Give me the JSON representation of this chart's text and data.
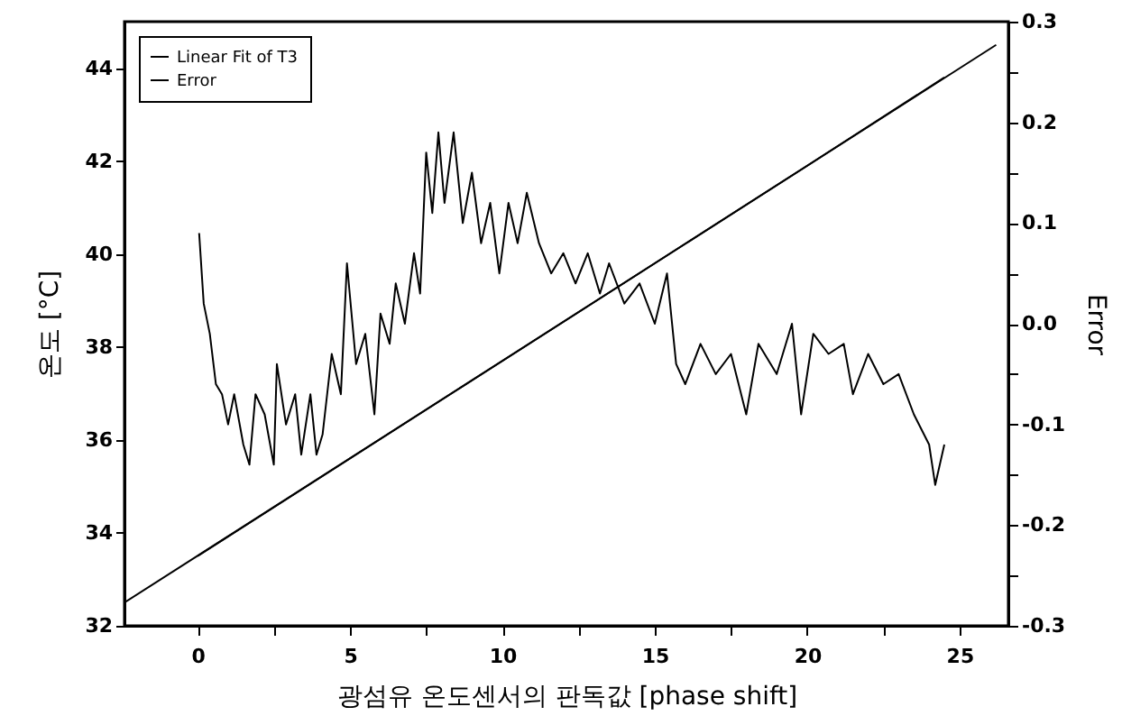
{
  "chart_data": {
    "type": "line",
    "xlabel": "광섬유 온도센서의 판독값 [phase shift]",
    "ylabel": "온도 [°C]",
    "y2label": "Error",
    "xlim": [
      -2.4,
      26.6
    ],
    "xticks": [
      0,
      {
        "value": 2.5,
        "label": null
      },
      5,
      {
        "value": 7.5,
        "label": null
      },
      10,
      {
        "value": 12.5,
        "label": null
      },
      15,
      {
        "value": 17.5,
        "label": null
      },
      20,
      {
        "value": 22.5,
        "label": null
      },
      25
    ],
    "ylim": [
      32,
      45
    ],
    "yticks": [
      32,
      34,
      36,
      38,
      40,
      42,
      44
    ],
    "y2lim": [
      -0.3,
      0.3
    ],
    "y2ticks": [
      {
        "value": -0.3,
        "label": "-0.3"
      },
      {
        "value": -0.25,
        "label": null
      },
      {
        "value": -0.2,
        "label": "-0.2"
      },
      {
        "value": -0.15,
        "label": null
      },
      {
        "value": -0.1,
        "label": "-0.1"
      },
      {
        "value": -0.05,
        "label": null
      },
      {
        "value": 0,
        "label": "0.0"
      },
      {
        "value": 0.05,
        "label": null
      },
      {
        "value": 0.1,
        "label": "0.1"
      },
      {
        "value": 0.15,
        "label": null
      },
      {
        "value": 0.2,
        "label": "0.2"
      },
      {
        "value": 0.25,
        "label": null
      },
      {
        "value": 0.3,
        "label": "0.3"
      }
    ],
    "grid": false,
    "legend": "top left",
    "series": [
      {
        "color": "#000000",
        "x": [
          0,
          5,
          10,
          15,
          20,
          24.5
        ],
        "values": [
          33.5,
          35.6,
          37.7,
          39.8,
          41.9,
          43.8
        ]
      },
      {
        "name": "Linear Fit of T3",
        "color": "#000000",
        "x": [
          -2.4,
          26.2
        ],
        "values": [
          32.5,
          44.5
        ]
      },
      {
        "name": "Error",
        "color": "#000000",
        "axis": "y2",
        "x": [
          0.05,
          0.2,
          0.4,
          0.6,
          0.8,
          1.0,
          1.2,
          1.5,
          1.7,
          1.9,
          2.2,
          2.5,
          2.6,
          2.9,
          3.2,
          3.4,
          3.7,
          3.9,
          4.1,
          4.4,
          4.7,
          4.9,
          5.2,
          5.5,
          5.8,
          6.0,
          6.3,
          6.5,
          6.8,
          7.1,
          7.3,
          7.5,
          7.7,
          7.9,
          8.1,
          8.4,
          8.7,
          9.0,
          9.3,
          9.6,
          9.9,
          10.2,
          10.5,
          10.8,
          11.2,
          11.6,
          12.0,
          12.4,
          12.8,
          13.2,
          13.5,
          14.0,
          14.5,
          15.0,
          15.4,
          15.7,
          16.0,
          16.5,
          17.0,
          17.5,
          18.0,
          18.4,
          19.0,
          19.5,
          19.8,
          20.2,
          20.7,
          21.2,
          21.5,
          22.0,
          22.5,
          23.0,
          23.5,
          24.0,
          24.2,
          24.5
        ],
        "values": [
          0.09,
          0.02,
          -0.01,
          -0.06,
          -0.07,
          -0.1,
          -0.07,
          -0.12,
          -0.14,
          -0.07,
          -0.09,
          -0.14,
          -0.04,
          -0.1,
          -0.07,
          -0.13,
          -0.07,
          -0.13,
          -0.11,
          -0.03,
          -0.07,
          0.06,
          -0.04,
          -0.01,
          -0.09,
          0.01,
          -0.02,
          0.04,
          0,
          0.07,
          0.03,
          0.17,
          0.11,
          0.19,
          0.12,
          0.19,
          0.1,
          0.15,
          0.08,
          0.12,
          0.05,
          0.12,
          0.08,
          0.13,
          0.08,
          0.05,
          0.07,
          0.04,
          0.07,
          0.03,
          0.06,
          0.02,
          0.04,
          0,
          0.05,
          -0.04,
          -0.06,
          -0.02,
          -0.05,
          -0.03,
          -0.09,
          -0.02,
          -0.05,
          0,
          -0.09,
          -0.01,
          -0.03,
          -0.02,
          -0.07,
          -0.03,
          -0.06,
          -0.05,
          -0.09,
          -0.12,
          -0.16,
          -0.12
        ]
      }
    ]
  }
}
